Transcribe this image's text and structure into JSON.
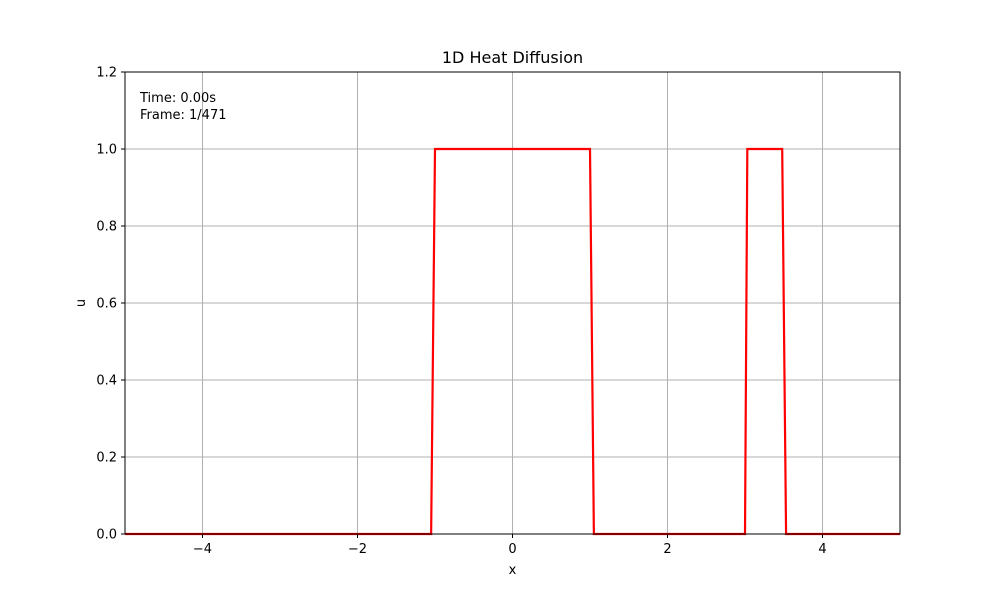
{
  "chart_data": {
    "type": "line",
    "title": "1D Heat Diffusion",
    "xlabel": "x",
    "ylabel": "u",
    "xlim": [
      -5,
      5
    ],
    "ylim": [
      0,
      1.2
    ],
    "xticks": [
      -4,
      -2,
      0,
      2,
      4
    ],
    "xtick_labels": [
      "−4",
      "−2",
      "0",
      "2",
      "4"
    ],
    "yticks": [
      0.0,
      0.2,
      0.4,
      0.6,
      0.8,
      1.0,
      1.2
    ],
    "ytick_labels": [
      "0.0",
      "0.2",
      "0.4",
      "0.6",
      "0.8",
      "1.0",
      "1.2"
    ],
    "grid": true,
    "series": [
      {
        "color": "#ff0000",
        "x": [
          -5,
          -1.05,
          -1.0,
          0,
          1.0,
          1.05,
          3.0,
          3.03,
          3.48,
          3.53,
          5
        ],
        "y": [
          0,
          0,
          1,
          1,
          1,
          0,
          0,
          1,
          1,
          0,
          0
        ]
      }
    ],
    "annotations": {
      "time": "Time: 0.00s",
      "frame": "Frame: 1/471"
    }
  }
}
